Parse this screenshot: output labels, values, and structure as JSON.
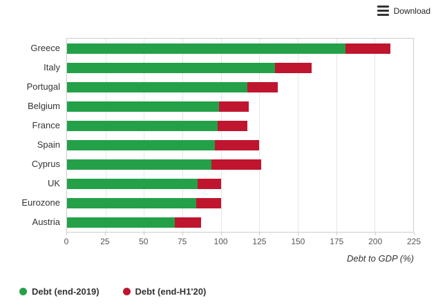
{
  "export": {
    "label": "Download"
  },
  "chart_data": {
    "type": "bar",
    "orientation": "horizontal",
    "stacked": true,
    "title": "",
    "xlabel": "Debt to GDP (%)",
    "ylabel": "",
    "xlim": [
      0,
      225
    ],
    "xticks": [
      0,
      25,
      50,
      75,
      100,
      125,
      150,
      175,
      200,
      225
    ],
    "grid": "vertical",
    "legend_position": "bottom-left",
    "categories": [
      "Greece",
      "Italy",
      "Portugal",
      "Belgium",
      "France",
      "Spain",
      "Cyprus",
      "UK",
      "Eurozone",
      "Austria"
    ],
    "series": [
      {
        "name": "Debt (end-2019)",
        "color": "#24A148",
        "values": [
          181,
          135,
          117,
          99,
          98,
          96,
          94,
          85,
          84,
          70
        ]
      },
      {
        "name": "Debt (end-H1'20)",
        "color": "#C0152F",
        "values_are_totals": true,
        "values": [
          210,
          159,
          137,
          118,
          117,
          125,
          126,
          100,
          100,
          87
        ]
      }
    ]
  }
}
